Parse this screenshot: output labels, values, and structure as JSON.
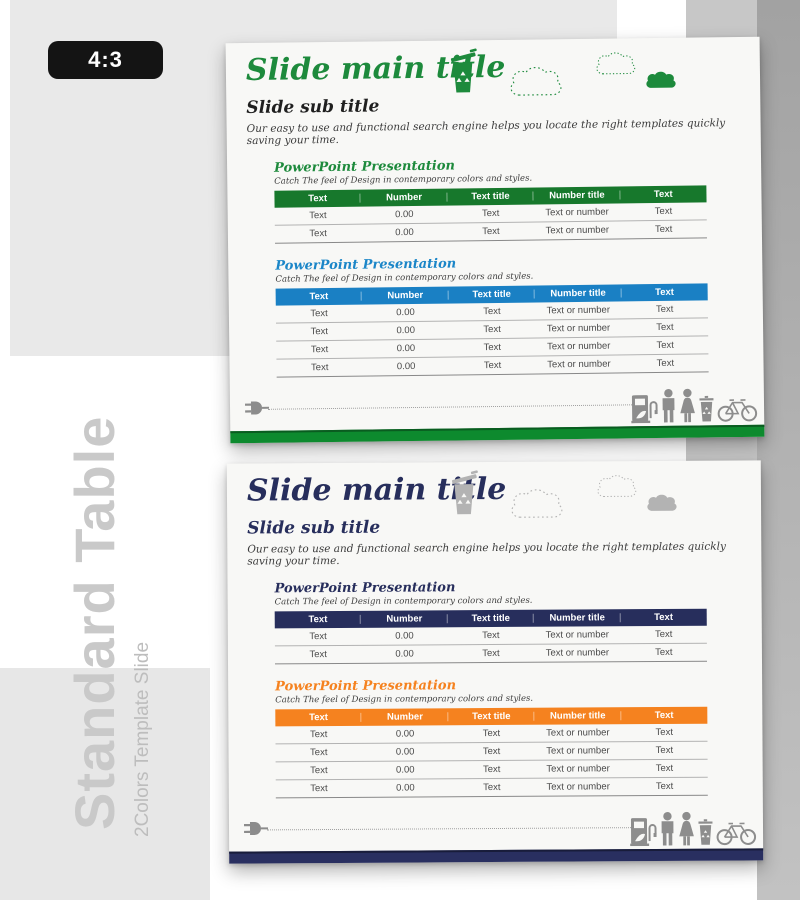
{
  "badge": {
    "label": "4:3"
  },
  "sidebar": {
    "title": "Standard Table",
    "subtitle": "2Colors Template Slide",
    "title_color": "#c9c9c9",
    "subtitle_color": "#bdbdbd"
  },
  "table": {
    "headers": [
      "Text",
      "Number",
      "Text title",
      "Number title",
      "Text"
    ],
    "row": [
      "Text",
      "0.00",
      "Text",
      "Text or number",
      "Text"
    ]
  },
  "slides": [
    {
      "main_title": "Slide main title",
      "sub_title": "Slide sub title",
      "description": "Our easy to use and functional search engine helps you locate the right templates quickly saving your time.",
      "colors": {
        "title": "#1d8a3c",
        "subtitle": "#1f1f1f",
        "icon": "#1d8a3c",
        "bar": "#0d8a2e",
        "bar_edge": "#0a5c20"
      },
      "sections": [
        {
          "title": "PowerPoint Presentation",
          "caption": "Catch The feel of Design in contemporary colors and styles.",
          "title_color": "#1d8a3c",
          "header_bg": "#17782c",
          "rows": 2
        },
        {
          "title": "PowerPoint Presentation",
          "caption": "Catch The feel of Design in contemporary colors and styles.",
          "title_color": "#1b86c8",
          "header_bg": "#1a80c4",
          "rows": 4
        }
      ]
    },
    {
      "main_title": "Slide main title",
      "sub_title": "Slide sub title",
      "description": "Our easy to use and functional search engine helps you locate the right templates quickly saving your time.",
      "colors": {
        "title": "#272e5c",
        "subtitle": "#272e5c",
        "icon": "#b3b3b3",
        "bar": "#292f60",
        "bar_edge": "#181c3a"
      },
      "sections": [
        {
          "title": "PowerPoint Presentation",
          "caption": "Catch The feel of Design in contemporary colors and styles.",
          "title_color": "#272e5c",
          "header_bg": "#272e5c",
          "rows": 2
        },
        {
          "title": "PowerPoint Presentation",
          "caption": "Catch The feel of Design in contemporary colors and styles.",
          "title_color": "#f5821f",
          "header_bg": "#f5821f",
          "rows": 4
        }
      ]
    }
  ]
}
